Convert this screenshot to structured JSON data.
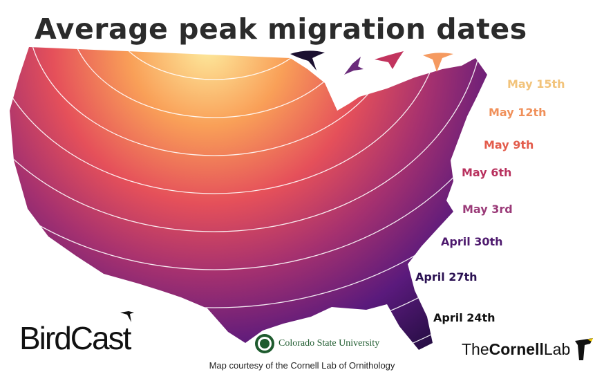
{
  "title": "Average peak migration dates",
  "legend_labels": [
    {
      "text": "May 15th",
      "color": "#f2c37a"
    },
    {
      "text": "May 12th",
      "color": "#f0905a"
    },
    {
      "text": "May 9th",
      "color": "#e35c4c"
    },
    {
      "text": "May 6th",
      "color": "#b8315e"
    },
    {
      "text": "May 3rd",
      "color": "#9a3a78"
    },
    {
      "text": "April 30th",
      "color": "#4e1a6e"
    },
    {
      "text": "April 27th",
      "color": "#2a1152"
    },
    {
      "text": "April 24th",
      "color": "#111111"
    }
  ],
  "color_scale": [
    "#fde99c",
    "#f9a058",
    "#e5505a",
    "#a6316f",
    "#5a1a7c",
    "#1b0b38"
  ],
  "logos": {
    "birdcast": "BirdCast",
    "csu": "Colorado State University",
    "cornell_the": "The",
    "cornell_name": "Cornell",
    "cornell_lab": "Lab"
  },
  "credit": "Map courtesy of the Cornell Lab of Ornithology"
}
